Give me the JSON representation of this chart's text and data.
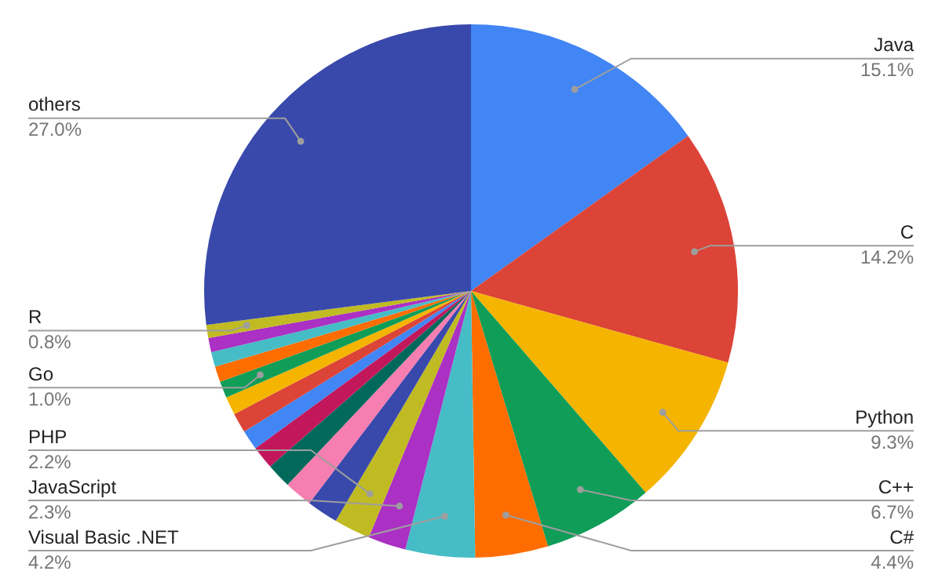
{
  "chart_data": {
    "type": "pie",
    "categories": [
      "Java",
      "C",
      "Python",
      "C++",
      "C#",
      "Visual Basic .NET",
      "JavaScript",
      "PHP",
      null,
      null,
      null,
      null,
      null,
      null,
      null,
      "Go",
      null,
      null,
      null,
      "R",
      "others"
    ],
    "values": [
      15.1,
      14.2,
      9.3,
      6.7,
      4.4,
      4.2,
      2.3,
      2.2,
      1.9,
      1.7,
      1.5,
      1.4,
      1.2,
      1.2,
      1.1,
      1.0,
      0.95,
      0.9,
      0.85,
      0.8,
      27.0
    ],
    "value_labels": [
      "15.1%",
      "14.2%",
      "9.3%",
      "6.7%",
      "4.4%",
      "4.2%",
      "2.3%",
      "2.2%",
      null,
      null,
      null,
      null,
      null,
      null,
      null,
      "1.0%",
      null,
      null,
      null,
      "0.8%",
      "27.0%"
    ],
    "colors": [
      "#4285f4",
      "#db4437",
      "#f4b400",
      "#0f9d58",
      "#ff6d01",
      "#46bdc6",
      "#ab30c4",
      "#c0bb22",
      "#3949ab",
      "#f77eb0",
      "#00695c",
      "#c2185b",
      "#4285f4",
      "#db4437",
      "#f4b400",
      "#0f9d58",
      "#ff6d01",
      "#46bdc6",
      "#ab30c4",
      "#c0bb22",
      "#3949ab"
    ],
    "legend": false
  }
}
